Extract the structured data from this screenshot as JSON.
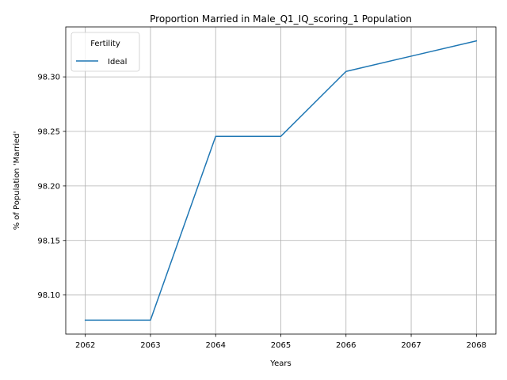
{
  "chart_data": {
    "type": "line",
    "title": "Proportion Married in Male_Q1_IQ_scoring_1 Population",
    "xlabel": "Years",
    "ylabel": "% of Population 'Married'",
    "x": [
      2062,
      2063,
      2064,
      2065,
      2066,
      2067,
      2068
    ],
    "series": [
      {
        "name": "Ideal",
        "color": "#1f77b4",
        "values": [
          98.077,
          98.077,
          98.2455,
          98.2455,
          98.305,
          98.319,
          98.333
        ]
      }
    ],
    "xlim": [
      2061.7,
      2068.3
    ],
    "ylim": [
      98.0642,
      98.3458
    ],
    "xticks": [
      2062,
      2063,
      2064,
      2065,
      2066,
      2067,
      2068
    ],
    "yticks": [
      98.1,
      98.15,
      98.2,
      98.25,
      98.3
    ],
    "ytick_labels": [
      "98.10",
      "98.15",
      "98.20",
      "98.25",
      "98.30"
    ],
    "grid": true,
    "legend": {
      "title": "Fertility",
      "placement": "upper-left"
    }
  }
}
